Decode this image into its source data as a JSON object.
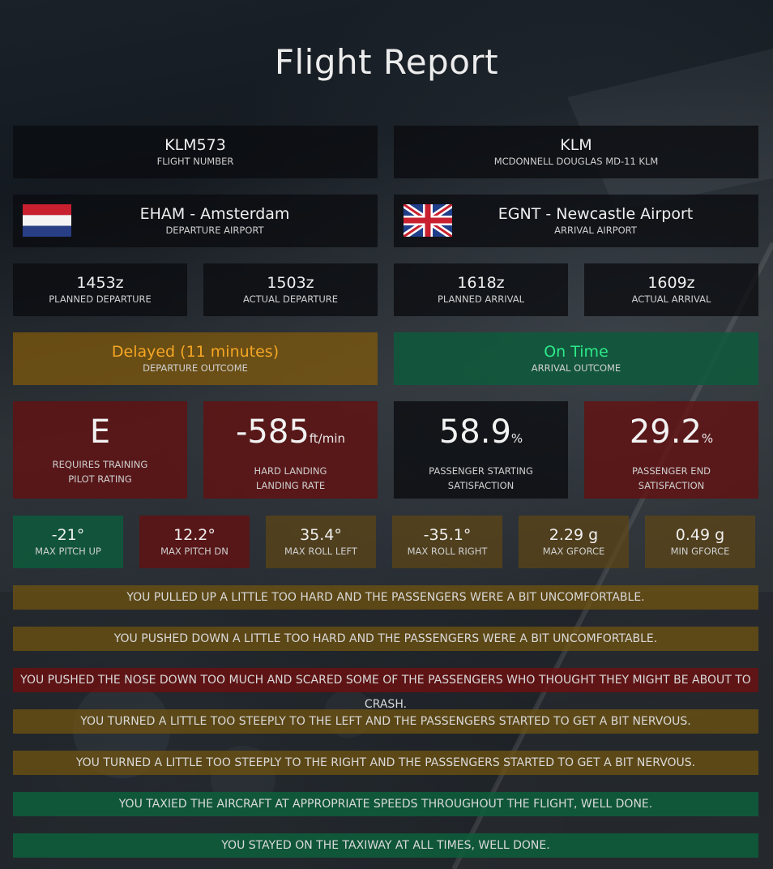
{
  "page": {
    "title": "Flight Report"
  },
  "flight": {
    "number": "KLM573",
    "number_label": "FLIGHT NUMBER",
    "airline": "KLM",
    "aircraft_label": "MCDONNELL DOUGLAS MD-11 KLM"
  },
  "departure": {
    "airport": "EHAM - Amsterdam",
    "label": "DEPARTURE AIRPORT",
    "flag": "netherlands-flag"
  },
  "arrival": {
    "airport": "EGNT - Newcastle Airport",
    "label": "ARRIVAL AIRPORT",
    "flag": "united-kingdom-flag"
  },
  "times": [
    {
      "value": "1453z",
      "label": "PLANNED DEPARTURE"
    },
    {
      "value": "1503z",
      "label": "ACTUAL DEPARTURE"
    },
    {
      "value": "1618z",
      "label": "PLANNED ARRIVAL"
    },
    {
      "value": "1609z",
      "label": "ACTUAL ARRIVAL"
    }
  ],
  "outcomes": {
    "departure": {
      "value": "Delayed (11 minutes)",
      "label": "DEPARTURE OUTCOME",
      "color": "#f5a623"
    },
    "arrival": {
      "value": "On Time",
      "label": "ARRIVAL OUTCOME",
      "color": "#2ee88a"
    }
  },
  "ratings": {
    "pilot": {
      "value": "E",
      "line1": "REQUIRES TRAINING",
      "line2": "PILOT RATING"
    },
    "landing": {
      "value": "-585",
      "unit": "ft/min",
      "line1": "HARD LANDING",
      "line2": "LANDING RATE"
    },
    "start_sat": {
      "value": "58.9",
      "unit": "%",
      "line1": "PASSENGER STARTING",
      "line2": "SATISFACTION"
    },
    "end_sat": {
      "value": "29.2",
      "unit": "%",
      "line1": "PASSENGER END",
      "line2": "SATISFACTION"
    }
  },
  "stats": [
    {
      "value": "-21°",
      "label": "MAX PITCH UP"
    },
    {
      "value": "12.2°",
      "label": "MAX PITCH DN"
    },
    {
      "value": "35.4°",
      "label": "MAX ROLL LEFT"
    },
    {
      "value": "-35.1°",
      "label": "MAX ROLL RIGHT"
    },
    {
      "value": "2.29 g",
      "label": "MAX GFORCE"
    },
    {
      "value": "0.49 g",
      "label": "MIN GFORCE"
    }
  ],
  "messages": [
    "YOU PULLED UP A LITTLE TOO HARD AND THE PASSENGERS WERE A BIT UNCOMFORTABLE.",
    "YOU PUSHED DOWN A LITTLE TOO HARD AND THE PASSENGERS WERE A BIT UNCOMFORTABLE.",
    "YOU PUSHED THE NOSE DOWN TOO MUCH AND SCARED SOME OF THE PASSENGERS WHO THOUGHT THEY MIGHT BE ABOUT TO CRASH.",
    "YOU TURNED A LITTLE TOO STEEPLY TO THE LEFT AND THE PASSENGERS STARTED TO GET A BIT NERVOUS.",
    "YOU TURNED A LITTLE TOO STEEPLY TO THE RIGHT AND THE PASSENGERS STARTED TO GET A BIT NERVOUS.",
    "YOU TAXIED THE AIRCRAFT AT APPROPRIATE SPEEDS THROUGHOUT THE FLIGHT, WELL DONE.",
    "YOU STAYED ON THE TAXIWAY AT ALL TIMES, WELL DONE."
  ]
}
